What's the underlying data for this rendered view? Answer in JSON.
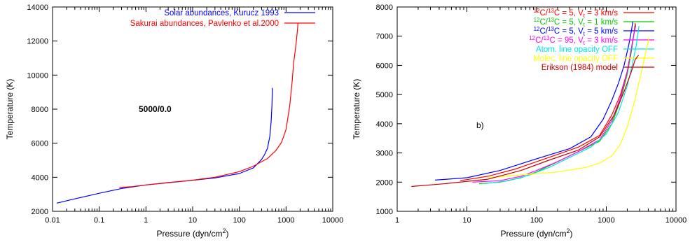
{
  "chart_data": [
    {
      "type": "line",
      "xlabel": "Pressure (dyn/cm",
      "xlabel_sup": "2",
      "xlabel_end": ")",
      "ylabel": "Temperature (K)",
      "xscale": "log",
      "xlim": [
        0.01,
        10000
      ],
      "ylim": [
        2000,
        14000
      ],
      "xticks": [
        "0.01",
        "0.1",
        "1",
        "10",
        "100",
        "1000",
        "10000"
      ],
      "yticks": [
        "2000",
        "4000",
        "6000",
        "8000",
        "10000",
        "12000",
        "14000"
      ],
      "legend_position": "top-right",
      "annotation": "5000/0.0",
      "series": [
        {
          "name": "Solar abundances, Kurucz 1993",
          "color": "#0000ff",
          "x": [
            0.0123,
            0.03,
            0.1,
            0.3,
            1,
            3,
            10,
            30,
            100,
            200,
            300,
            350,
            400,
            450,
            480,
            500,
            510
          ],
          "y": [
            2480,
            2730,
            3060,
            3340,
            3550,
            3680,
            3820,
            3960,
            4220,
            4550,
            5050,
            5350,
            5700,
            6400,
            7300,
            8300,
            9250
          ]
        },
        {
          "name": "Sakurai abundances, Pavlenko et al.2000",
          "color": "#ff0000",
          "x": [
            0.27,
            0.5,
            1,
            3,
            10,
            30,
            100,
            200,
            400,
            600,
            800,
            1000,
            1200,
            1350,
            1450,
            1550,
            1650,
            1750,
            1800
          ],
          "y": [
            3400,
            3450,
            3550,
            3690,
            3830,
            4000,
            4330,
            4650,
            5100,
            5550,
            6050,
            6800,
            8200,
            9600,
            10700,
            11300,
            11900,
            12600,
            13050
          ]
        }
      ]
    },
    {
      "type": "line",
      "xlabel": "Pressure (dyn/cm",
      "xlabel_sup": "2",
      "xlabel_end": ")",
      "ylabel": "Temperature (K)",
      "xscale": "log",
      "xlim": [
        1,
        10000
      ],
      "ylim": [
        1000,
        8000
      ],
      "xticks": [
        "1",
        "10",
        "100",
        "1000",
        "10000"
      ],
      "yticks": [
        "1000",
        "2000",
        "3000",
        "4000",
        "5000",
        "6000",
        "7000",
        "8000"
      ],
      "legend_position": "top-right",
      "annotation": "b)",
      "series": [
        {
          "name": "12C/13C = 5, Vt = 3 km/s",
          "label_parts": [
            "12",
            "C/",
            "13",
            "C = 5, V",
            "t",
            " = 3 km/s"
          ],
          "color": "#ff0000",
          "x": [
            8,
            20,
            50,
            100,
            200,
            400,
            800,
            1200,
            1600,
            2000,
            2300,
            2500,
            2600
          ],
          "y": [
            2050,
            2200,
            2450,
            2700,
            2950,
            3200,
            3600,
            4300,
            5000,
            5800,
            6600,
            7100,
            7450
          ]
        },
        {
          "name": "12C/13C = 5, Vt = 1 km/s",
          "label_parts": [
            "12",
            "C/",
            "13",
            "C = 5, V",
            "t",
            " = 1 km/s"
          ],
          "color": "#00cc00",
          "x": [
            15,
            30,
            60,
            100,
            200,
            400,
            800,
            1200,
            1600,
            2000,
            2300,
            2500,
            2650
          ],
          "y": [
            1950,
            2000,
            2150,
            2350,
            2700,
            3050,
            3400,
            4000,
            4800,
            5700,
            6500,
            7100,
            7400
          ]
        },
        {
          "name": "12C/13C = 5, Vt = 5 km/s",
          "label_parts": [
            "12",
            "C/",
            "13",
            "C = 5, V",
            "t",
            " = 5 km/s"
          ],
          "color": "#0000ff",
          "x": [
            3.5,
            10,
            30,
            100,
            300,
            600,
            900,
            1200,
            1500,
            1800,
            2100,
            2300,
            2400
          ],
          "y": [
            2070,
            2150,
            2400,
            2800,
            3150,
            3550,
            4150,
            4800,
            5400,
            6000,
            6700,
            7200,
            7500
          ]
        },
        {
          "name": "12C/13C = 95, Vt = 3 km/s",
          "label_parts": [
            "12",
            "C/",
            "13",
            "C = 95, V",
            "t",
            " = 3 km/s"
          ],
          "color": "#ff00ff",
          "x": [
            12,
            30,
            60,
            100,
            200,
            400,
            800,
            1200,
            1600,
            2000,
            2300,
            2500,
            2650
          ],
          "y": [
            2000,
            2050,
            2200,
            2400,
            2700,
            3050,
            3450,
            4100,
            4900,
            5800,
            6600,
            7100,
            7350
          ]
        },
        {
          "name": "Atom. line opacity OFF",
          "color": "#00e5e5",
          "x": [
            18,
            40,
            80,
            150,
            300,
            600,
            1000,
            1500,
            2000,
            2400,
            2700,
            2850,
            2950
          ],
          "y": [
            1950,
            2050,
            2250,
            2500,
            2850,
            3200,
            3650,
            4400,
            5300,
            6100,
            6700,
            7100,
            7350
          ]
        },
        {
          "name": "Molec. line opacity OFF",
          "color": "#ffff00",
          "x": [
            20,
            60,
            200,
            500,
            800,
            1200,
            1600,
            2000,
            2500,
            3000,
            3500,
            3800,
            4100
          ],
          "y": [
            2150,
            2250,
            2350,
            2500,
            2650,
            2900,
            3300,
            3900,
            4700,
            5500,
            6200,
            6600,
            6950
          ]
        },
        {
          "name": "Erikson (1984) model",
          "color": "#cc0000",
          "x": [
            1.6,
            5,
            20,
            60,
            150,
            400,
            800,
            1300,
            1800,
            2300,
            2600,
            2800,
            2900
          ],
          "y": [
            1850,
            1950,
            2100,
            2400,
            2750,
            3100,
            3550,
            4300,
            5100,
            5800,
            6200,
            6300,
            6350
          ]
        }
      ]
    }
  ]
}
